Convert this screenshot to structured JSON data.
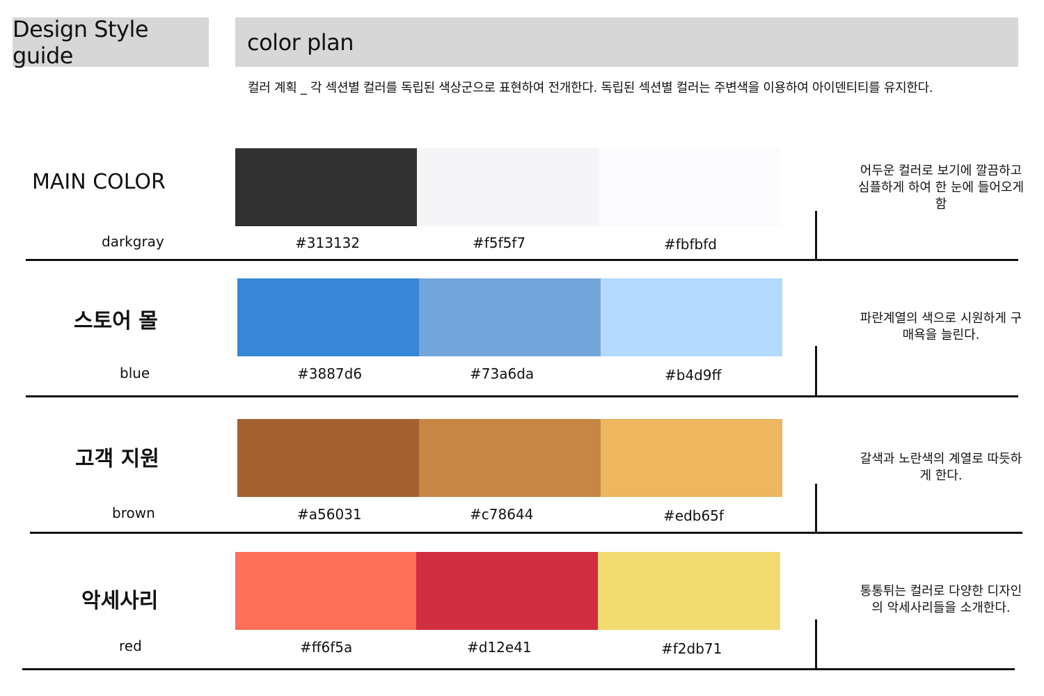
{
  "header": {
    "left_title": "Design Style guide",
    "right_title": "color plan"
  },
  "description": "컬러 계획 _ 각 섹션별 컬러를 독립된 색상군으로 표현하여 전개한다. 독립된 섹션별 컬러는 주변색을 이용하여 아이덴티티를 유지한다.",
  "sections": [
    {
      "title": "MAIN COLOR",
      "subtitle": "darkgray",
      "swatches": [
        {
          "color": "#313132",
          "label": "#313132"
        },
        {
          "color": "#f5f5f7",
          "label": "#f5f5f7"
        },
        {
          "color": "#fbfbfd",
          "label": "#fbfbfd"
        }
      ],
      "note": "어두운 컬러로 보기에 깔끔하고 심플하게 하여 한 눈에 들어오게 함"
    },
    {
      "title": "스토어 몰",
      "subtitle": "blue",
      "swatches": [
        {
          "color": "#3887d6",
          "label": "#3887d6"
        },
        {
          "color": "#73a6da",
          "label": "#73a6da"
        },
        {
          "color": "#b4d9ff",
          "label": "#b4d9ff"
        }
      ],
      "note": "파란계열의 색으로 시원하게 구매욕을 늘린다."
    },
    {
      "title": "고객 지원",
      "subtitle": "brown",
      "swatches": [
        {
          "color": "#a56031",
          "label": "#a56031"
        },
        {
          "color": "#c78644",
          "label": "#c78644"
        },
        {
          "color": "#edb65f",
          "label": "#edb65f"
        }
      ],
      "note": "갈색과 노란색의 계열로 따듯하게 한다."
    },
    {
      "title": "악세사리",
      "subtitle": "red",
      "swatches": [
        {
          "color": "#ff6f5a",
          "label": "#ff6f5a"
        },
        {
          "color": "#d12e41",
          "label": "#d12e41"
        },
        {
          "color": "#f2db71",
          "label": "#f2db71"
        }
      ],
      "note": "통통튀는 컬러로 다양한 디자인의 악세사리들을 소개한다."
    }
  ]
}
